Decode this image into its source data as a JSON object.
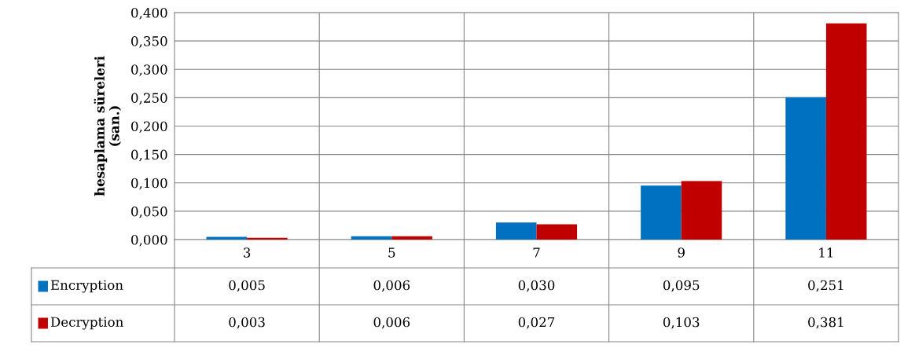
{
  "chart_data": {
    "type": "bar",
    "ylabel": "hesaplama süreleri\n(san.)",
    "categories": [
      "3",
      "5",
      "7",
      "9",
      "11"
    ],
    "series": [
      {
        "name": "Encryption",
        "color": "#0070c0",
        "values": [
          0.005,
          0.006,
          0.03,
          0.095,
          0.251
        ],
        "value_labels": [
          "0,005",
          "0,006",
          "0,030",
          "0,095",
          "0,251"
        ]
      },
      {
        "name": "Decryption",
        "color": "#c00000",
        "values": [
          0.003,
          0.006,
          0.027,
          0.103,
          0.381
        ],
        "value_labels": [
          "0,003",
          "0,006",
          "0,027",
          "0,103",
          "0,381"
        ]
      }
    ],
    "ylim": [
      0,
      0.4
    ],
    "yticks": [
      {
        "value": 0,
        "label": "0,000"
      },
      {
        "value": 0.05,
        "label": "0,050"
      },
      {
        "value": 0.1,
        "label": "0,100"
      },
      {
        "value": 0.15,
        "label": "0,150"
      },
      {
        "value": 0.2,
        "label": "0,200"
      },
      {
        "value": 0.25,
        "label": "0,250"
      },
      {
        "value": 0.3,
        "label": "0,300"
      },
      {
        "value": 0.35,
        "label": "0,350"
      },
      {
        "value": 0.4,
        "label": "0,400"
      }
    ],
    "grid": true,
    "legend": "bottom"
  }
}
